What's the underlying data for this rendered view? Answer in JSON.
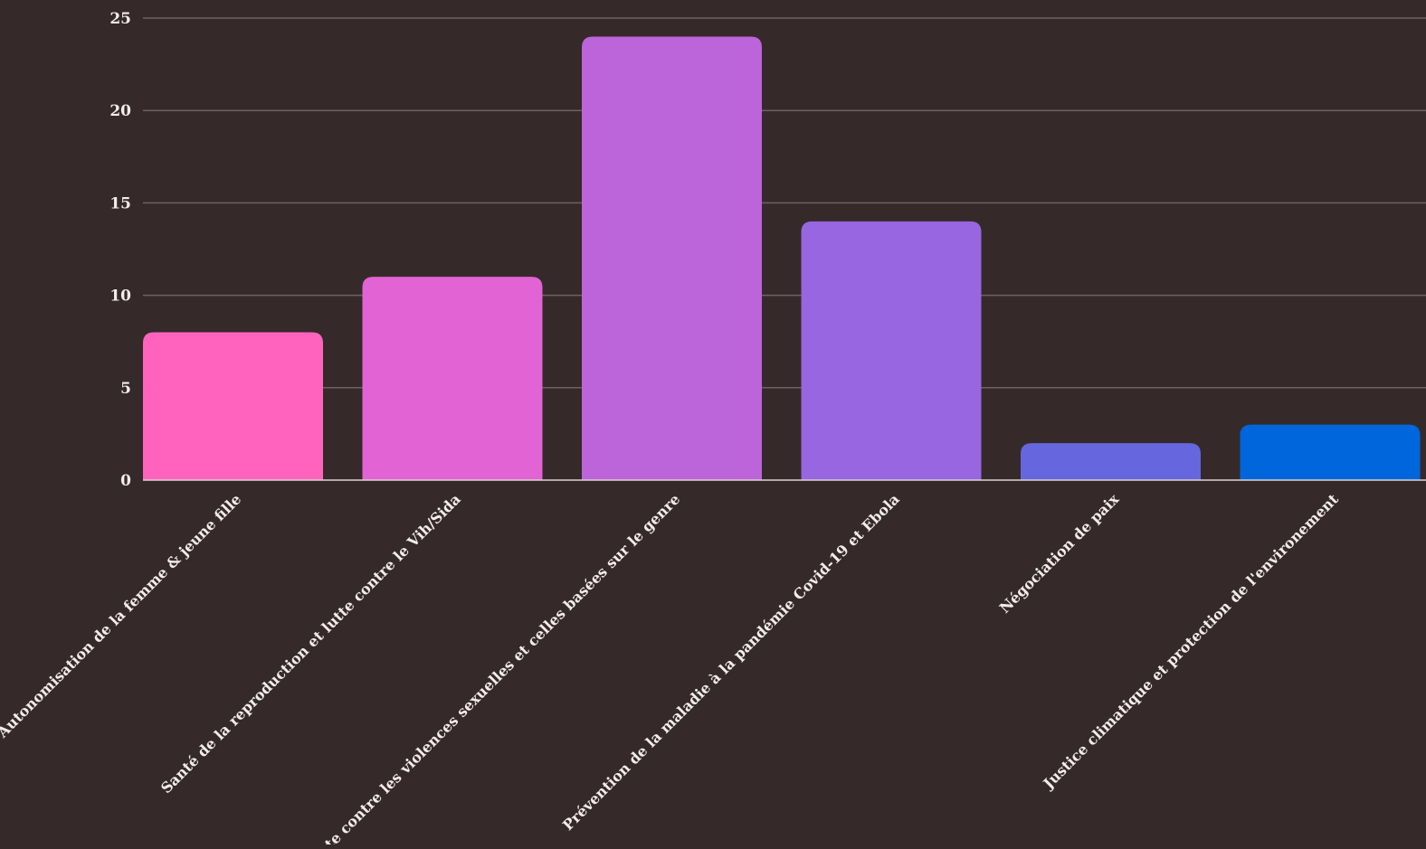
{
  "chart_data": {
    "type": "bar",
    "title": "",
    "xlabel": "",
    "ylabel": "",
    "ylim": [
      0,
      25
    ],
    "yticks": [
      0,
      5,
      10,
      15,
      20,
      25
    ],
    "grid": true,
    "categories": [
      "Autonomisation de la femme & jeune fille",
      "Santé de la reproduction et lutte contre le Vih/Sida",
      "Lutte contre les violences sexuelles et celles basées sur le genre",
      "Prévention de la maladie à la pandémie Covid-19 et Ebola",
      "Négociation de paix",
      "Justice climatique et protection de l'environement"
    ],
    "values": [
      8,
      11,
      24,
      14,
      2,
      3
    ],
    "colors": [
      "#ff63be",
      "#e263d3",
      "#bc64da",
      "#9766e0",
      "#6666de",
      "#0066db"
    ]
  },
  "style": {
    "background": "#352a29",
    "grid_color": "#6d6361",
    "text_color": "#f2ecea"
  }
}
